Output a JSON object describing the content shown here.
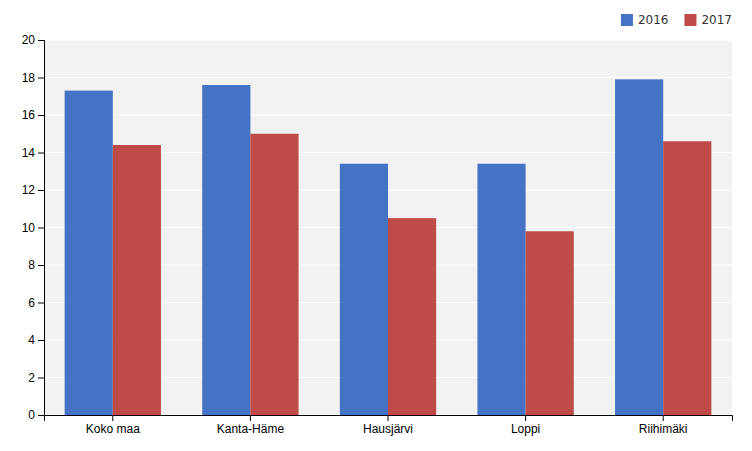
{
  "chart_data": {
    "type": "bar",
    "categories": [
      "Koko maa",
      "Kanta-Häme",
      "Hausjärvi",
      "Loppi",
      "Riihimäki"
    ],
    "series": [
      {
        "name": "2016",
        "color": "#4472C4",
        "values": [
          17.3,
          17.6,
          13.4,
          13.4,
          17.9
        ]
      },
      {
        "name": "2017",
        "color": "#BE4B48",
        "values": [
          14.4,
          15.0,
          10.5,
          9.8,
          14.6
        ]
      }
    ],
    "ylim": [
      0,
      20
    ],
    "yticks": [
      0,
      2,
      4,
      6,
      8,
      10,
      12,
      14,
      16,
      18,
      20
    ],
    "grid": true,
    "legend": "upper right"
  }
}
